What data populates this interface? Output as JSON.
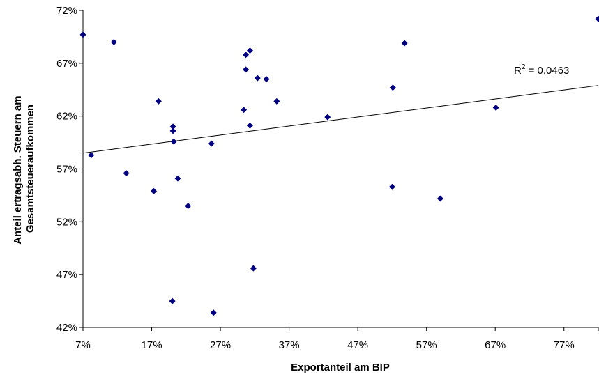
{
  "chart_data": {
    "type": "scatter",
    "title": "",
    "xlabel": "Exportanteil am BIP",
    "ylabel": [
      "Anteil ertragsabh. Steuern am",
      "Gesamtsteueraufkommen"
    ],
    "xlim": [
      0.07,
      0.82
    ],
    "ylim": [
      0.42,
      0.72
    ],
    "xticks": [
      0.07,
      0.17,
      0.27,
      0.37,
      0.47,
      0.57,
      0.67,
      0.77
    ],
    "xtick_labels": [
      "7%",
      "17%",
      "27%",
      "37%",
      "47%",
      "57%",
      "67%",
      "77%"
    ],
    "yticks": [
      0.42,
      0.47,
      0.52,
      0.57,
      0.62,
      0.67,
      0.72
    ],
    "ytick_labels": [
      "42%",
      "47%",
      "52%",
      "57%",
      "62%",
      "67%",
      "72%"
    ],
    "grid": false,
    "marker_color": "#000080",
    "points": [
      {
        "x": 0.07,
        "y": 0.697
      },
      {
        "x": 0.082,
        "y": 0.583
      },
      {
        "x": 0.115,
        "y": 0.69
      },
      {
        "x": 0.133,
        "y": 0.566
      },
      {
        "x": 0.173,
        "y": 0.549
      },
      {
        "x": 0.18,
        "y": 0.634
      },
      {
        "x": 0.2,
        "y": 0.445
      },
      {
        "x": 0.201,
        "y": 0.61
      },
      {
        "x": 0.201,
        "y": 0.606
      },
      {
        "x": 0.202,
        "y": 0.596
      },
      {
        "x": 0.208,
        "y": 0.561
      },
      {
        "x": 0.223,
        "y": 0.535
      },
      {
        "x": 0.257,
        "y": 0.594
      },
      {
        "x": 0.26,
        "y": 0.434
      },
      {
        "x": 0.304,
        "y": 0.626
      },
      {
        "x": 0.307,
        "y": 0.678
      },
      {
        "x": 0.307,
        "y": 0.664
      },
      {
        "x": 0.313,
        "y": 0.682
      },
      {
        "x": 0.313,
        "y": 0.611
      },
      {
        "x": 0.318,
        "y": 0.476
      },
      {
        "x": 0.324,
        "y": 0.656
      },
      {
        "x": 0.337,
        "y": 0.655
      },
      {
        "x": 0.352,
        "y": 0.634
      },
      {
        "x": 0.426,
        "y": 0.619
      },
      {
        "x": 0.52,
        "y": 0.553
      },
      {
        "x": 0.521,
        "y": 0.647
      },
      {
        "x": 0.538,
        "y": 0.689
      },
      {
        "x": 0.59,
        "y": 0.542
      },
      {
        "x": 0.671,
        "y": 0.628
      },
      {
        "x": 0.82,
        "y": 0.712
      }
    ],
    "trendline": {
      "type": "linear",
      "x": [
        0.07,
        0.82
      ],
      "y": [
        0.585,
        0.649
      ]
    },
    "r2_label": {
      "prefix": "R",
      "sup": "2",
      "suffix": " = 0,0463"
    }
  }
}
